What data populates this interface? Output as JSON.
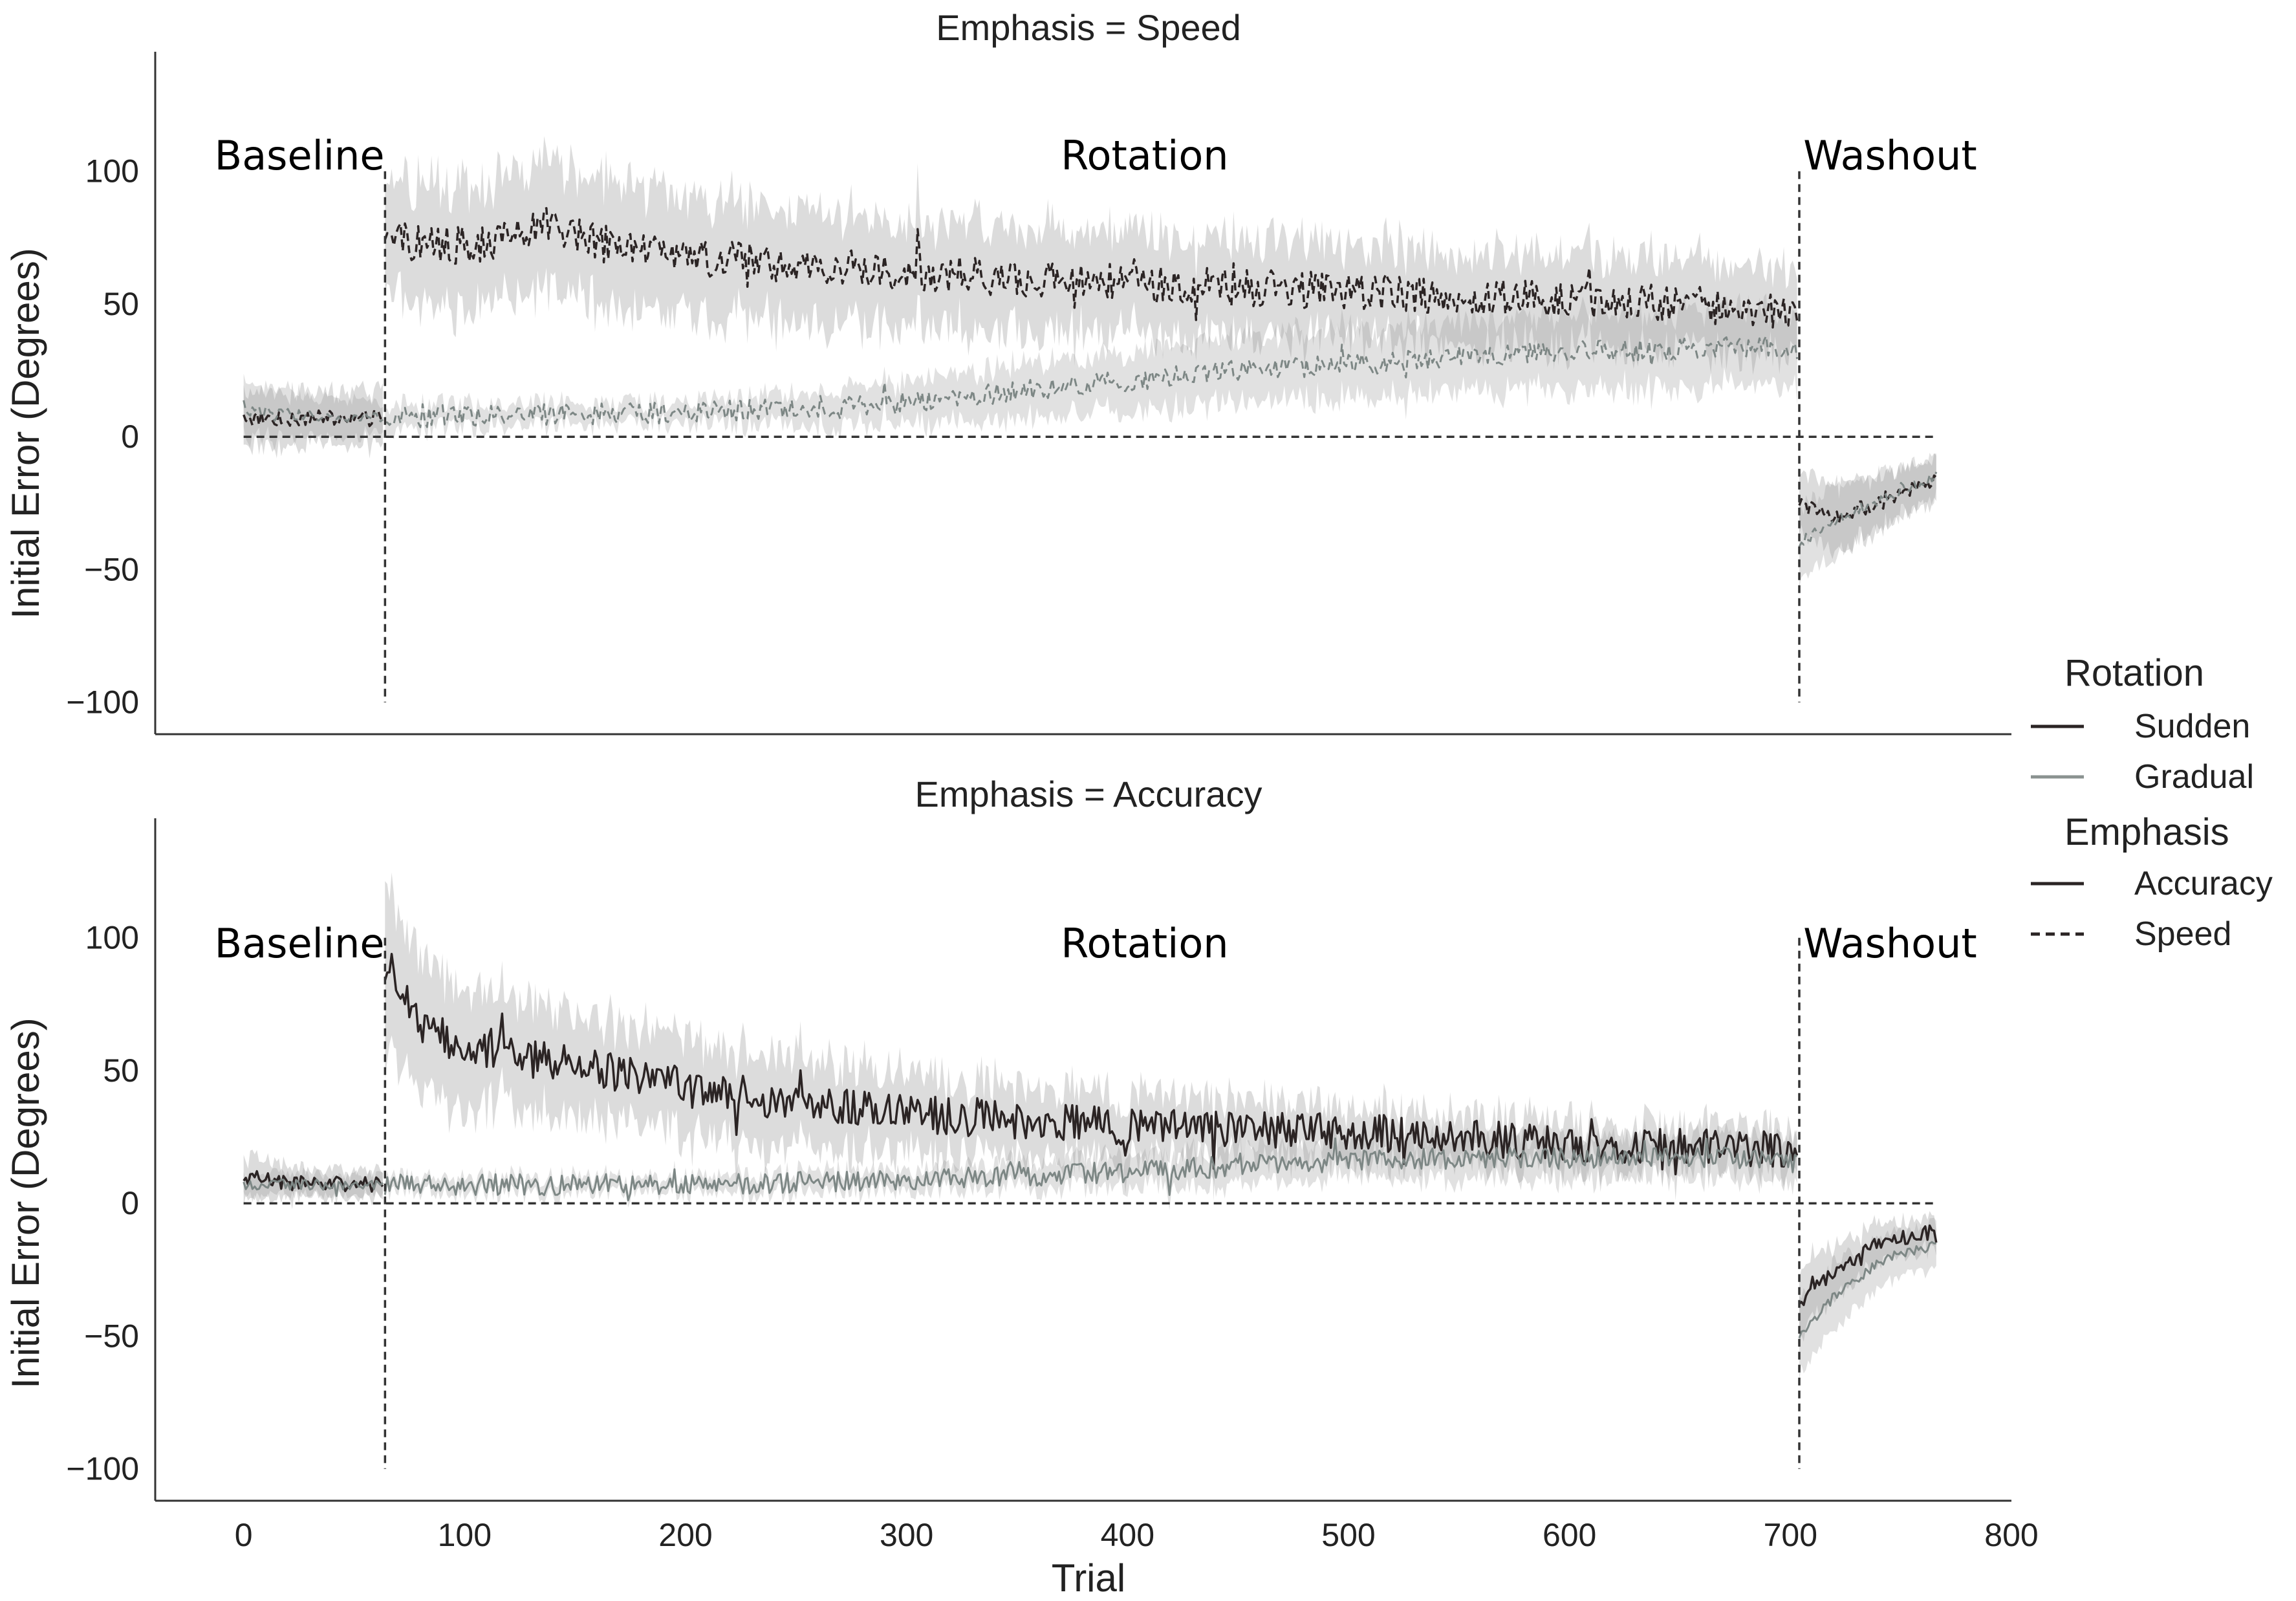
{
  "chart_data": [
    {
      "type": "line",
      "title": "Emphasis = Speed",
      "xlabel": "",
      "ylabel": "Initial Error (Degrees)",
      "xlim": [
        -40,
        800
      ],
      "ylim": [
        -112,
        145
      ],
      "yticks": [
        "100",
        "50",
        "0",
        "−50",
        "−100"
      ],
      "ytick_values": [
        100,
        50,
        0,
        -50,
        -100
      ],
      "phases": [
        {
          "label": "Baseline",
          "x": 0
        },
        {
          "label": "Rotation",
          "x": 383
        },
        {
          "label": "Washout",
          "x": 719
        }
      ],
      "phase_boundaries": [
        64,
        704
      ],
      "reference_line": 0,
      "series": [
        {
          "rotation": "Sudden",
          "emphasis": "Speed",
          "x": [
            0,
            30,
            63,
            64,
            80,
            100,
            120,
            140,
            160,
            200,
            250,
            300,
            350,
            400,
            450,
            500,
            550,
            600,
            650,
            690,
            703,
            704,
            720,
            740,
            766
          ],
          "values": [
            7,
            7,
            7,
            75,
            73,
            72,
            74,
            80,
            73,
            68,
            65,
            62,
            60,
            59,
            56,
            55,
            53,
            52,
            50,
            48,
            45,
            -25,
            -30,
            -25,
            -15
          ],
          "band": [
            10,
            10,
            10,
            22,
            22,
            23,
            24,
            25,
            23,
            22,
            21,
            20,
            20,
            19,
            18,
            18,
            17,
            17,
            17,
            17,
            17,
            12,
            12,
            10,
            8
          ]
        },
        {
          "rotation": "Gradual",
          "emphasis": "Speed",
          "x": [
            0,
            30,
            63,
            64,
            100,
            200,
            250,
            300,
            350,
            400,
            450,
            500,
            550,
            600,
            650,
            690,
            703,
            704,
            720,
            740,
            766
          ],
          "values": [
            10,
            8,
            7,
            7,
            8,
            9,
            11,
            13,
            17,
            21,
            25,
            27,
            30,
            32,
            33,
            34,
            33,
            -40,
            -32,
            -24,
            -15
          ],
          "band": [
            10,
            8,
            6,
            5,
            4,
            4,
            6,
            8,
            10,
            11,
            12,
            13,
            13,
            14,
            14,
            14,
            14,
            14,
            12,
            10,
            8
          ]
        }
      ]
    },
    {
      "type": "line",
      "title": "Emphasis = Accuracy",
      "xlabel": "Trial",
      "ylabel": "Initial Error (Degrees)",
      "xlim": [
        -40,
        800
      ],
      "ylim": [
        -112,
        145
      ],
      "xticks": [
        "0",
        "100",
        "200",
        "300",
        "400",
        "500",
        "600",
        "700",
        "800"
      ],
      "xtick_values": [
        0,
        100,
        200,
        300,
        400,
        500,
        600,
        700,
        800
      ],
      "yticks": [
        "100",
        "50",
        "0",
        "−50",
        "−100"
      ],
      "ytick_values": [
        100,
        50,
        0,
        -50,
        -100
      ],
      "phases": [
        {
          "label": "Baseline",
          "x": 0
        },
        {
          "label": "Rotation",
          "x": 383
        },
        {
          "label": "Washout",
          "x": 719
        }
      ],
      "phase_boundaries": [
        64,
        704
      ],
      "reference_line": 0,
      "series": [
        {
          "rotation": "Sudden",
          "emphasis": "Accuracy",
          "x": [
            0,
            30,
            63,
            64,
            70,
            80,
            100,
            150,
            200,
            250,
            300,
            350,
            400,
            450,
            500,
            550,
            600,
            650,
            700,
            703,
            704,
            720,
            740,
            766
          ],
          "values": [
            10,
            7,
            7,
            90,
            85,
            68,
            58,
            52,
            45,
            38,
            34,
            31,
            29,
            28,
            27,
            25,
            22,
            21,
            20,
            18,
            -38,
            -25,
            -15,
            -10
          ],
          "band": [
            8,
            5,
            5,
            30,
            28,
            25,
            22,
            20,
            18,
            17,
            15,
            13,
            12,
            11,
            10,
            9,
            9,
            8,
            8,
            8,
            12,
            10,
            7,
            6
          ]
        },
        {
          "rotation": "Gradual",
          "emphasis": "Accuracy",
          "x": [
            0,
            63,
            64,
            100,
            200,
            250,
            300,
            350,
            400,
            450,
            500,
            550,
            600,
            650,
            700,
            703,
            704,
            720,
            740,
            766
          ],
          "values": [
            7,
            7,
            7,
            7,
            7,
            8,
            9,
            10,
            12,
            14,
            16,
            17,
            17,
            18,
            16,
            15,
            -50,
            -35,
            -22,
            -15
          ],
          "band": [
            4,
            4,
            3,
            3,
            3,
            4,
            4,
            5,
            6,
            7,
            7,
            8,
            8,
            8,
            8,
            8,
            14,
            12,
            9,
            8
          ]
        }
      ]
    }
  ],
  "legend": {
    "rotation_title": "Rotation",
    "rotation_items": [
      {
        "label": "Sudden",
        "color": "#2b2424"
      },
      {
        "label": "Gradual",
        "color": "#8a9290"
      }
    ],
    "emphasis_title": "Emphasis",
    "emphasis_items": [
      {
        "label": "Accuracy",
        "style": "solid"
      },
      {
        "label": "Speed",
        "style": "dashed"
      }
    ]
  },
  "colors": {
    "sudden": "#2b2424",
    "gradual": "#7d8785",
    "band": "#9a9a9a",
    "reference": "#333333"
  }
}
